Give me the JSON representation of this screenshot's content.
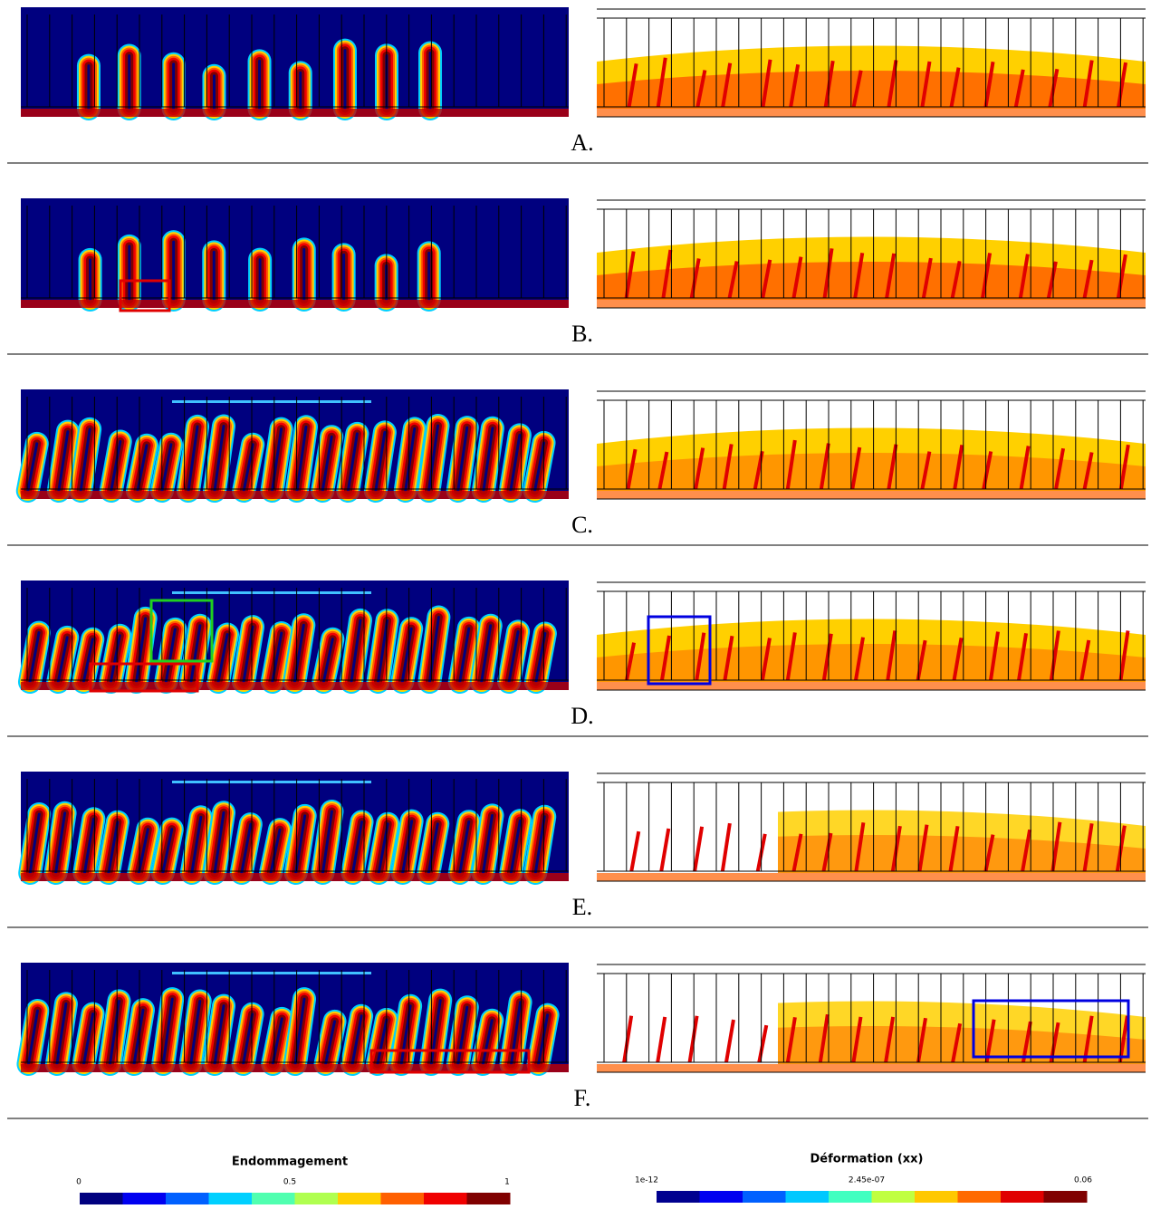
{
  "panels": [
    {
      "label": "A."
    },
    {
      "label": "B."
    },
    {
      "label": "C."
    },
    {
      "label": "D."
    },
    {
      "label": "E."
    },
    {
      "label": "F."
    }
  ],
  "legends": [
    {
      "title": "Endommagement",
      "ticks": [
        "0",
        "0.5",
        "1"
      ]
    },
    {
      "title": "Déformation (xx)",
      "ticks": [
        "1e-12",
        "2.45e-07",
        "0.06"
      ]
    }
  ]
}
